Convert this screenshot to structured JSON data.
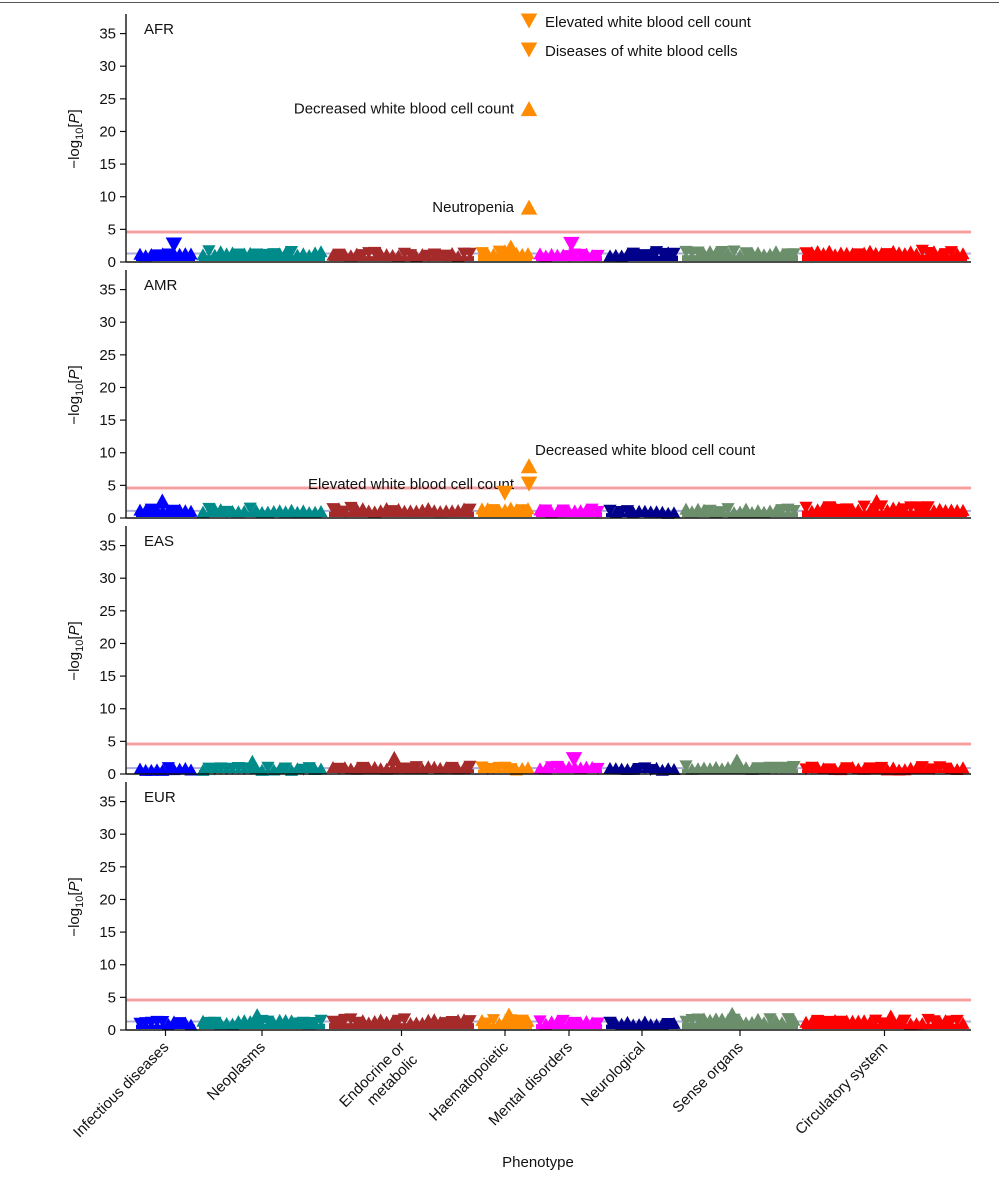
{
  "chart_data": {
    "type": "scatter",
    "title": "",
    "xlabel": "Phenotype",
    "ylabel_parts": [
      "−log",
      "10",
      "[",
      "P",
      "]"
    ],
    "ylim": [
      0,
      38
    ],
    "yticks": [
      0,
      5,
      10,
      15,
      20,
      25,
      30,
      35
    ],
    "categories": [
      {
        "label": [
          "Infectious diseases"
        ],
        "color": "#0000ff"
      },
      {
        "label": [
          "Neoplasms"
        ],
        "color": "#008b8b"
      },
      {
        "label": [
          "Endocrine or",
          "metabolic"
        ],
        "color": "#a52a2a"
      },
      {
        "label": [
          "Haematopoietic"
        ],
        "color": "#ff8c00"
      },
      {
        "label": [
          "Mental disorders"
        ],
        "color": "#ff00ff"
      },
      {
        "label": [
          "Neurological"
        ],
        "color": "#00008b"
      },
      {
        "label": [
          "Sense organs"
        ],
        "color": "#6b8e6b"
      },
      {
        "label": [
          "Circulatory system"
        ],
        "color": "#ff0000"
      }
    ],
    "colors": {
      "threshold": "#f4a0a0",
      "baseline": "#9999cc",
      "axis": "#111111"
    },
    "legend": [
      {
        "label": "Elevated white blood cell count",
        "marker": "down",
        "color": "#ff8c00"
      },
      {
        "label": "Diseases of white blood cells",
        "marker": "down",
        "color": "#ff8c00"
      }
    ],
    "panels": [
      {
        "name": "AFR",
        "threshold": 4.6,
        "baseline": 1.3,
        "band_levels": [
          1.3,
          1.4,
          1.2,
          1.6,
          1.2,
          1.3,
          1.4,
          1.5
        ],
        "points": [
          {
            "category": 3,
            "value": 23.5,
            "marker": "up",
            "label": "Decreased white blood cell count",
            "label_side": "left"
          },
          {
            "category": 3,
            "value": 8.4,
            "marker": "up",
            "label": "Neutropenia",
            "label_side": "left"
          },
          {
            "category": 0,
            "value": 2.6,
            "marker": "down"
          },
          {
            "category": 4,
            "value": 2.7,
            "marker": "down"
          },
          {
            "category": 3,
            "value": 2.3,
            "marker": "up"
          }
        ]
      },
      {
        "name": "AMR",
        "threshold": 4.6,
        "baseline": 1.1,
        "band_levels": [
          1.2,
          1.2,
          1.3,
          1.4,
          1.2,
          1.0,
          1.2,
          1.5
        ],
        "points": [
          {
            "category": 3,
            "value": 8.0,
            "marker": "up",
            "label": "Decreased white blood cell count",
            "label_side": "right"
          },
          {
            "category": 3,
            "value": 5.2,
            "marker": "down",
            "label": "Elevated white blood cell count",
            "label_side": "left"
          },
          {
            "category": 3,
            "value": 3.8,
            "marker": "down"
          },
          {
            "category": 0,
            "value": 2.6,
            "marker": "up"
          },
          {
            "category": 7,
            "value": 2.5,
            "marker": "up"
          }
        ]
      },
      {
        "name": "EAS",
        "threshold": 4.6,
        "baseline": 0.9,
        "band_levels": [
          0.8,
          0.8,
          1.0,
          0.9,
          1.0,
          0.8,
          1.0,
          0.9
        ],
        "points": [
          {
            "category": 2,
            "value": 2.4,
            "marker": "up"
          },
          {
            "category": 4,
            "value": 2.2,
            "marker": "down"
          },
          {
            "category": 6,
            "value": 2.0,
            "marker": "up"
          },
          {
            "category": 1,
            "value": 1.8,
            "marker": "up"
          }
        ]
      },
      {
        "name": "EUR",
        "threshold": 4.6,
        "baseline": 1.3,
        "band_levels": [
          1.1,
          1.3,
          1.4,
          1.3,
          1.2,
          1.1,
          1.5,
          1.3
        ],
        "points": [
          {
            "category": 1,
            "value": 2.2,
            "marker": "up"
          },
          {
            "category": 6,
            "value": 2.4,
            "marker": "up"
          },
          {
            "category": 3,
            "value": 2.3,
            "marker": "up"
          },
          {
            "category": 7,
            "value": 2.0,
            "marker": "up"
          }
        ]
      }
    ]
  }
}
